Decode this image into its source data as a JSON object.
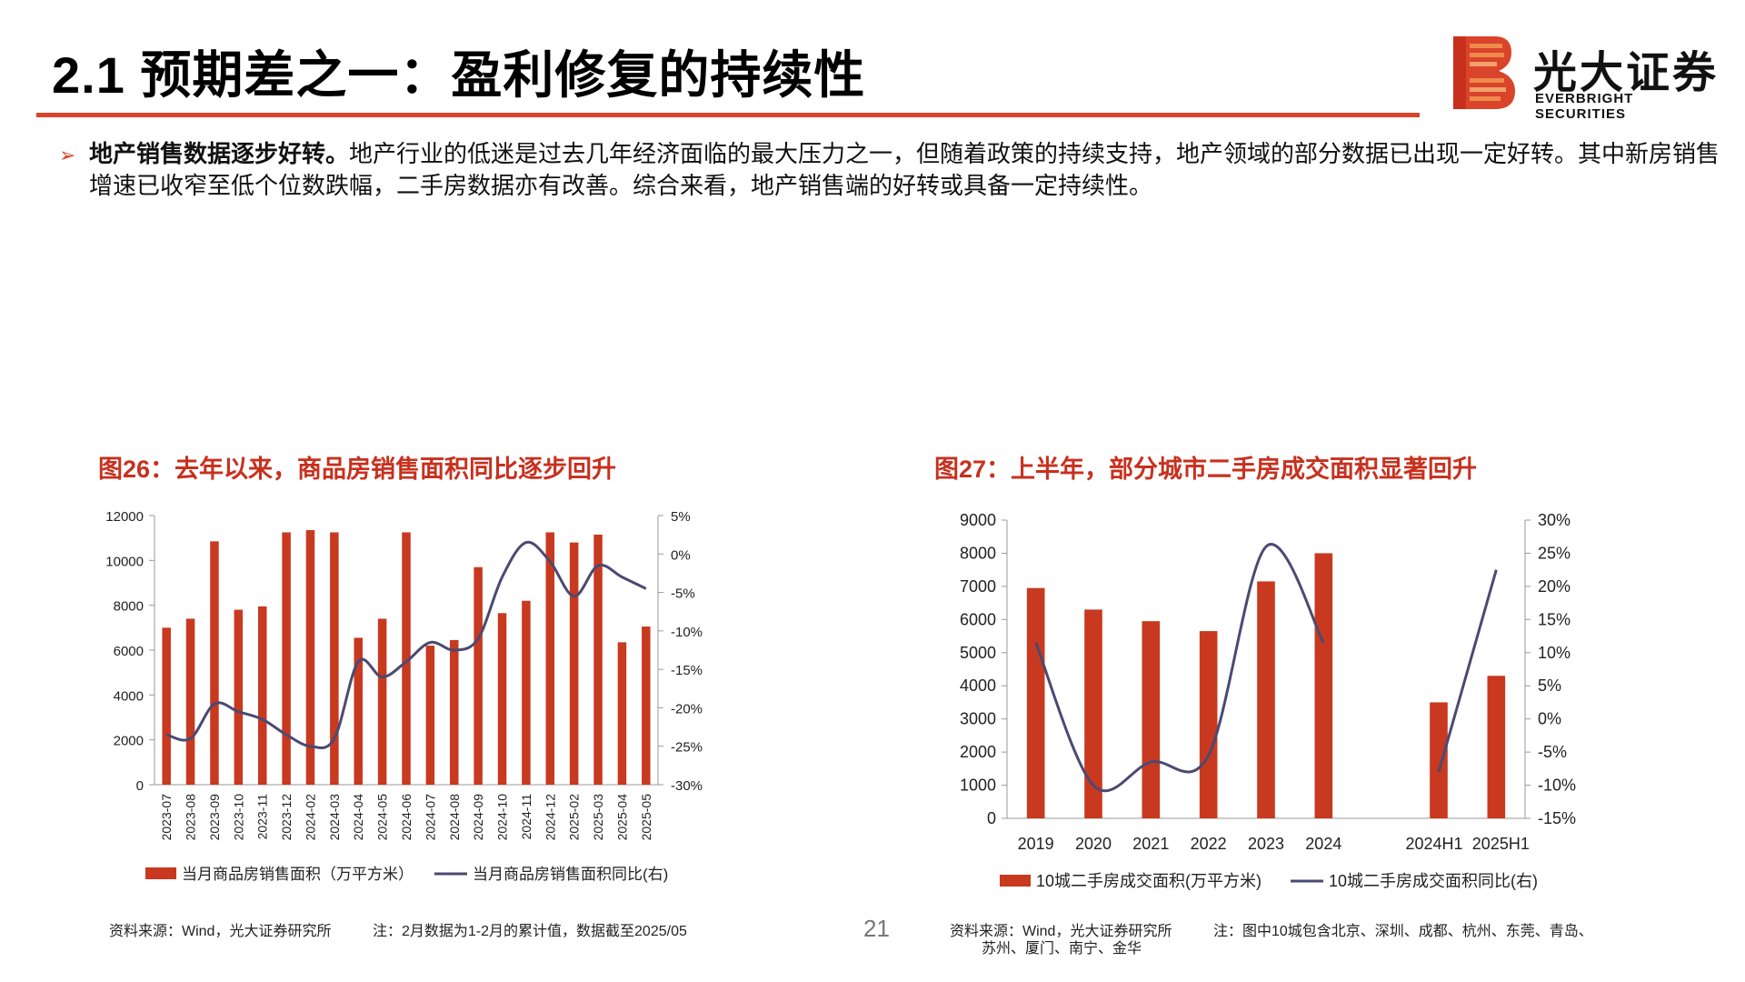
{
  "page": {
    "title": "2.1 预期差之一：盈利修复的持续性",
    "page_number": "21"
  },
  "logo": {
    "name": "光大证券",
    "name_en": "EVERBRIGHT SECURITIES",
    "colors": [
      "#c8301e",
      "#e5553a",
      "#f08a4b"
    ]
  },
  "bullet": {
    "bold": "地产销售数据逐步好转。",
    "text": "地产行业的低迷是过去几年经济面临的最大压力之一，但随着政策的持续支持，地产领域的部分数据已出现一定好转。其中新房销售增速已收窄至低个位数跌幅，二手房数据亦有改善。综合来看，地产销售端的好转或具备一定持续性。"
  },
  "figures": {
    "fig26_title": "图26：去年以来，商品房销售面积同比逐步回升",
    "fig27_title": "图27：上半年，部分城市二手房成交面积显著回升",
    "fig26_source": "资料来源：Wind，光大证券研究所",
    "fig26_note": "注：2月数据为1-2月的累计值，数据截至2025/05",
    "fig27_source": "资料来源：Wind，光大证券研究所",
    "fig27_note_line1": "注：图中10城包含北京、深圳、成都、杭州、东莞、青岛、",
    "fig27_note_line2": "苏州、厦门、南宁、金华"
  },
  "colors": {
    "bar": "#c8391f",
    "line": "#4a4a72",
    "accent": "#d9442b",
    "title_red": "#c8301e"
  },
  "chart_data": [
    {
      "type": "bar",
      "categories": [
        "2023-07",
        "2023-08",
        "2023-09",
        "2023-10",
        "2023-11",
        "2023-12",
        "2024-02",
        "2024-03",
        "2024-04",
        "2024-05",
        "2024-06",
        "2024-07",
        "2024-08",
        "2024-09",
        "2024-10",
        "2024-11",
        "2024-12",
        "2025-02",
        "2025-03",
        "2025-04",
        "2025-05"
      ],
      "series": [
        {
          "name": "当月商品房销售面积（万平方米）",
          "type": "bar",
          "axis": "left",
          "values": [
            7000,
            7400,
            10850,
            7800,
            7950,
            11250,
            11350,
            11250,
            6550,
            7400,
            11250,
            6200,
            6450,
            9700,
            7650,
            8200,
            11250,
            10800,
            11150,
            6350,
            7050
          ]
        },
        {
          "name": "当月商品房销售面积同比(右)",
          "type": "line",
          "axis": "right",
          "values": [
            -23.5,
            -24,
            -19.5,
            -20.5,
            -21.5,
            -23.5,
            -25,
            -24,
            -14,
            -16,
            -14,
            -11.5,
            -12.5,
            -11,
            -3,
            1.5,
            -1,
            -5.5,
            -1.5,
            -3,
            -4.5
          ]
        }
      ],
      "ylim_left": [
        0,
        12000
      ],
      "yticks_left": [
        "0",
        "2000",
        "4000",
        "6000",
        "8000",
        "10000",
        "12000"
      ],
      "ylim_right": [
        -30,
        5
      ],
      "yticks_right": [
        "-30%",
        "-25%",
        "-20%",
        "-15%",
        "-10%",
        "-5%",
        "0%",
        "5%"
      ],
      "legend": "bottom"
    },
    {
      "type": "bar",
      "categories": [
        "2019",
        "2020",
        "2021",
        "2022",
        "2023",
        "2024",
        "",
        "2024H1",
        "2025H1"
      ],
      "series": [
        {
          "name": "10城二手房成交面积(万平方米)",
          "type": "bar",
          "axis": "left",
          "values": [
            6950,
            6300,
            5950,
            5650,
            7150,
            8000,
            null,
            3500,
            4300
          ]
        },
        {
          "name": "10城二手房成交面积同比(右)",
          "type": "line",
          "axis": "right",
          "values": [
            11.5,
            -10,
            -6.5,
            -5.5,
            26,
            11.5,
            null,
            -8,
            22.5
          ]
        }
      ],
      "ylim_left": [
        0,
        9000
      ],
      "yticks_left": [
        "0",
        "1000",
        "2000",
        "3000",
        "4000",
        "5000",
        "6000",
        "7000",
        "8000",
        "9000"
      ],
      "ylim_right": [
        -15,
        30
      ],
      "yticks_right": [
        "-15%",
        "-10%",
        "-5%",
        "0%",
        "5%",
        "10%",
        "15%",
        "20%",
        "25%",
        "30%"
      ],
      "legend": "bottom"
    }
  ]
}
